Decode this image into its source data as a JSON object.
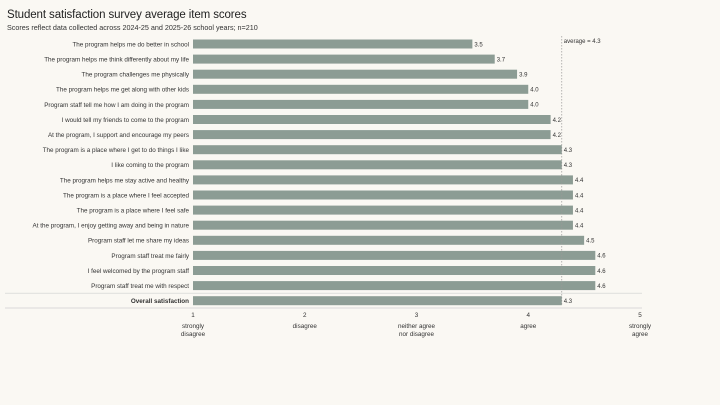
{
  "chart_data": {
    "type": "bar",
    "orientation": "horizontal",
    "title": "Student satisfaction survey average item scores",
    "subtitle": "Scores reflect data collected across 2024-25 and 2025-26 school years; n=210",
    "categories": [
      "The program helps me do better in school",
      "The program helps me think differently about my life",
      "The program challenges me physically",
      "The program helps me get along with other kids",
      "Program staff tell me how I am doing in the program",
      "I would tell my friends to come to the program",
      "At the program, I support and encourage my peers",
      "The program is a place where I get to do things I like",
      "I like coming to the program",
      "The program helps me stay active and healthy",
      "The program is a place where I feel accepted",
      "The program is a place where I feel safe",
      "At the program, I enjoy getting away and being in nature",
      "Program staff let me share my ideas",
      "Program staff treat me fairly",
      "I feel welcomed by the program staff",
      "Program staff treat me with respect",
      "Overall satisfaction"
    ],
    "values": [
      3.5,
      3.7,
      3.9,
      4.0,
      4.0,
      4.2,
      4.2,
      4.3,
      4.3,
      4.4,
      4.4,
      4.4,
      4.4,
      4.5,
      4.6,
      4.6,
      4.6,
      4.3
    ],
    "value_labels": [
      "3.5",
      "3.7",
      "3.9",
      "4.0",
      "4.0",
      "4.2",
      "4.2",
      "4.3",
      "4.3",
      "4.4",
      "4.4",
      "4.4",
      "4.4",
      "4.5",
      "4.6",
      "4.6",
      "4.6",
      "4.3"
    ],
    "emphasized_category": "Overall satisfaction",
    "xlim": [
      1,
      5
    ],
    "x_ticks": [
      {
        "value": 1,
        "number": "1",
        "label": [
          "strongly",
          "disagree"
        ]
      },
      {
        "value": 2,
        "number": "2",
        "label": [
          "disagree"
        ]
      },
      {
        "value": 3,
        "number": "3",
        "label": [
          "neither agree",
          "nor disagree"
        ]
      },
      {
        "value": 4,
        "number": "4",
        "label": [
          "agree"
        ]
      },
      {
        "value": 5,
        "number": "5",
        "label": [
          "strongly",
          "agree"
        ]
      }
    ],
    "reference_line": {
      "value": 4.3,
      "label": "average = 4.3",
      "style": "dotted"
    },
    "grid": false,
    "legend": "none",
    "colors": {
      "bar": "#8c9c94",
      "background": "#faf8f3",
      "text": "#333333",
      "axis": "#cfcfcf",
      "reference_line": "#999999"
    }
  }
}
